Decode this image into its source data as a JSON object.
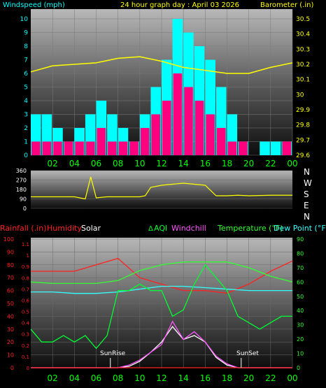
{
  "colors": {
    "background": "#000000",
    "wind_label": "#00ffff",
    "title": "#ffff00",
    "barometer": "#ffff00",
    "wind_speed": "#00ffff",
    "wind_gust": "#ff007f",
    "wind_dir": "#ffff00",
    "rainfall": "#ff2020",
    "humidity": "#ff2020",
    "solar": "#ffffff",
    "aqi": "#00ff33",
    "windchill": "#ff55ff",
    "temperature": "#33ff33",
    "dew_point": "#33ffff",
    "tick_labels_x": "#00ff00",
    "compass": "#ffffff",
    "sunrise_label": "#ffffff"
  },
  "header": {
    "left_label": "Windspeed (mph)",
    "title": "24 hour graph day : April 03 2026",
    "right_label": "Barometer (.in)"
  },
  "middle": {
    "compass_letters": [
      "N",
      "W",
      "S",
      "E",
      "N"
    ]
  },
  "legend": {
    "rainfall": "Rainfall (.in)",
    "humidity": "Humidity",
    "solar": "Solar",
    "aqi": "AQI",
    "windchill": "Windchill",
    "temperature": "Temperature (°F)",
    "dew_point": "Dew Point (°F)"
  },
  "annotations": {
    "sunrise": "SunRise",
    "sunset": "SunSet"
  },
  "chart_data": [
    {
      "type": "bar",
      "title": "24 hour graph day : April 03 2026",
      "ylabel": "Windspeed (mph)",
      "y2label": "Barometer (.in)",
      "x_ticks": [
        "02",
        "04",
        "06",
        "08",
        "10",
        "12",
        "14",
        "16",
        "18",
        "20",
        "22",
        "00"
      ],
      "ylim": [
        0,
        10
      ],
      "y_ticks": [
        "0",
        "1",
        "2",
        "3",
        "4",
        "5",
        "6",
        "7",
        "8",
        "9",
        "10"
      ],
      "y2lim": [
        29.6,
        30.5
      ],
      "y2_ticks": [
        "29.6",
        "29.7",
        "29.8",
        "29.9",
        "30",
        "30.1",
        "30.2",
        "30.3",
        "30.4",
        "30.5"
      ],
      "grid": true,
      "series": [
        {
          "name": "Windspeed (mph)",
          "kind": "bar",
          "x_hours": [
            0,
            1,
            2,
            3,
            4,
            5,
            6,
            7,
            8,
            9,
            10,
            11,
            12,
            13,
            14,
            15,
            16,
            17,
            18,
            19,
            20,
            21,
            22,
            23
          ],
          "values": [
            3,
            3,
            2,
            1,
            2,
            3,
            4,
            3,
            2,
            1,
            3,
            5,
            7,
            10,
            9,
            8,
            7,
            5,
            3,
            1,
            0,
            1,
            1,
            1
          ]
        },
        {
          "name": "Wind gust (mph)",
          "kind": "bar",
          "x_hours": [
            0,
            1,
            2,
            3,
            4,
            5,
            6,
            7,
            8,
            9,
            10,
            11,
            12,
            13,
            14,
            15,
            16,
            17,
            18,
            19,
            20,
            21,
            22,
            23
          ],
          "values": [
            1,
            1,
            1,
            1,
            1,
            1,
            2,
            1,
            1,
            1,
            2,
            3,
            4,
            6,
            5,
            4,
            3,
            2,
            1,
            1,
            0,
            0,
            0,
            1
          ]
        },
        {
          "name": "Barometer (.in)",
          "kind": "line",
          "x_hours": [
            0,
            2,
            4,
            6,
            8,
            10,
            12,
            14,
            16,
            18,
            20,
            22,
            24
          ],
          "values": [
            30.15,
            30.19,
            30.2,
            30.21,
            30.24,
            30.25,
            30.22,
            30.18,
            30.16,
            30.14,
            30.14,
            30.18,
            30.21
          ]
        }
      ]
    },
    {
      "type": "line",
      "ylabel": "Wind direction",
      "ylim": [
        0,
        360
      ],
      "y_ticks": [
        "0",
        "90",
        "180",
        "270",
        "360"
      ],
      "y2_ticks": [
        "N",
        "W",
        "S",
        "E",
        "N"
      ],
      "grid": true,
      "series": [
        {
          "name": "Wind direction",
          "x_hours": [
            0,
            2,
            4,
            5,
            5.5,
            6,
            7,
            8,
            9,
            10,
            10.5,
            11,
            12,
            13,
            14,
            15,
            16,
            17,
            18,
            19,
            20,
            22,
            24
          ],
          "values": [
            110,
            110,
            110,
            90,
            300,
            100,
            110,
            110,
            110,
            110,
            120,
            200,
            220,
            230,
            240,
            230,
            220,
            120,
            120,
            125,
            120,
            125,
            125
          ]
        }
      ]
    },
    {
      "type": "line",
      "x_ticks": [
        "02",
        "04",
        "06",
        "08",
        "10",
        "12",
        "14",
        "16",
        "18",
        "20",
        "22",
        "00"
      ],
      "ylim": [
        0,
        100
      ],
      "y_ticks": [
        "0",
        "10",
        "20",
        "30",
        "40",
        "50",
        "60",
        "70",
        "80",
        "90",
        "100"
      ],
      "rain_ticks": [
        "0",
        "0.1",
        "0.2",
        "0.3",
        "0.4",
        "0.5",
        "0.6",
        "0.7",
        "0.8",
        "0.9",
        "1",
        "1.1"
      ],
      "y2lim": [
        0,
        90
      ],
      "y2_ticks": [
        "0",
        "10",
        "20",
        "30",
        "40",
        "50",
        "60",
        "70",
        "80",
        "90"
      ],
      "grid": true,
      "series": [
        {
          "name": "Humidity",
          "x_hours": [
            0,
            2,
            4,
            6,
            8,
            10,
            12,
            14,
            16,
            18,
            20,
            22,
            24
          ],
          "values": [
            75,
            75,
            75,
            80,
            85,
            70,
            65,
            60,
            60,
            58,
            65,
            75,
            83
          ]
        },
        {
          "name": "Temperature (°F)",
          "x_hours": [
            0,
            2,
            4,
            6,
            8,
            10,
            12,
            14,
            16,
            18,
            20,
            22,
            24
          ],
          "values": [
            60,
            59,
            59,
            59,
            61,
            68,
            72,
            74,
            74,
            74,
            70,
            64,
            60
          ]
        },
        {
          "name": "Dew Point (°F)",
          "x_hours": [
            0,
            2,
            4,
            6,
            8,
            10,
            12,
            14,
            16,
            18,
            20,
            22,
            24
          ],
          "values": [
            53,
            53,
            52,
            52,
            53,
            55,
            57,
            57,
            56,
            55,
            54,
            54,
            54
          ]
        },
        {
          "name": "AQI",
          "x_hours": [
            0,
            1,
            2,
            3,
            4,
            5,
            6,
            7,
            8,
            9,
            10,
            11,
            12,
            13,
            14,
            15,
            16,
            17,
            18,
            19,
            20,
            21,
            22,
            23,
            24
          ],
          "values": [
            30,
            20,
            20,
            25,
            20,
            25,
            15,
            25,
            60,
            60,
            65,
            60,
            60,
            40,
            45,
            65,
            80,
            70,
            60,
            40,
            35,
            30,
            35,
            40,
            40
          ]
        },
        {
          "name": "Solar",
          "x_hours": [
            0,
            7,
            7.5,
            8,
            9,
            10,
            11,
            12,
            13,
            14,
            15,
            16,
            17,
            18,
            19,
            20,
            24
          ],
          "values": [
            0,
            0,
            0,
            0,
            1,
            5,
            12,
            20,
            32,
            22,
            25,
            20,
            8,
            2,
            0,
            0,
            0
          ]
        },
        {
          "name": "Windchill",
          "x_hours": [
            0,
            7,
            8,
            9,
            10,
            11,
            12,
            13,
            14,
            15,
            16,
            17,
            18,
            19,
            24
          ],
          "values": [
            0,
            0,
            0,
            2,
            6,
            12,
            18,
            36,
            22,
            28,
            20,
            9,
            3,
            0,
            0
          ]
        },
        {
          "name": "Rainfall (.in)",
          "x_hours": [
            0,
            24
          ],
          "values": [
            0,
            0
          ]
        }
      ],
      "sunrise_hour": 7.3,
      "sunset_hour": 19.3
    }
  ]
}
